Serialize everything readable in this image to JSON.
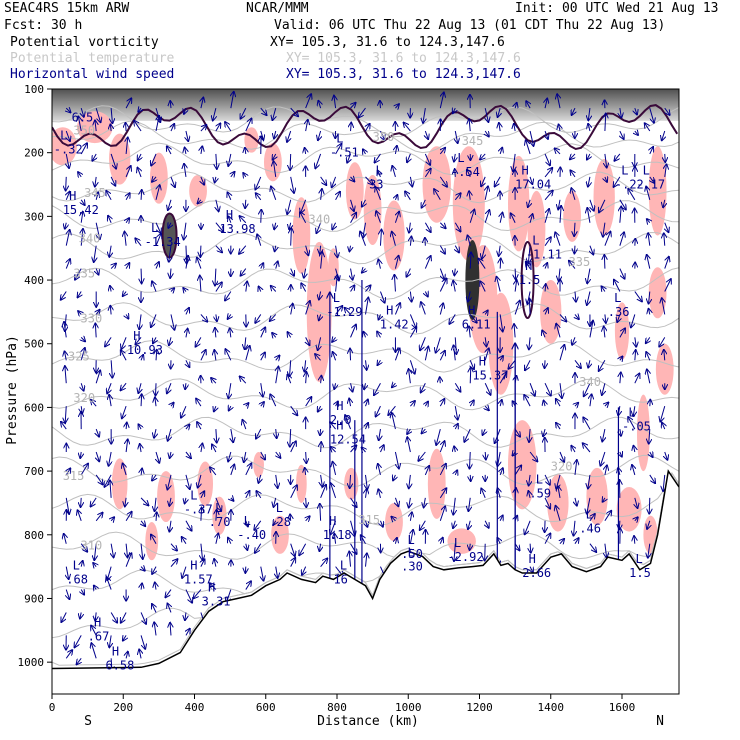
{
  "header": {
    "title_left": "SEAC4RS 15km ARW",
    "title_center": "NCAR/MMM",
    "init": "Init: 00 UTC Wed 21 Aug 13",
    "fcst": "Fcst:   30 h",
    "valid": "Valid: 06 UTC Thu 22 Aug 13 (01 CDT Thu 22 Aug 13)",
    "field1": "Potential vorticity",
    "field1_xy": "XY= 105.3, 31.6 to 124.3,147.6",
    "field2": "Potential temperature",
    "field2_xy": "XY= 105.3, 31.6 to 124.3,147.6",
    "field3": "Horizontal wind speed",
    "field3_xy": "XY= 105.3, 31.6 to 124.3,147.6"
  },
  "colors": {
    "pv_fill": "#ffb6b6",
    "wind_arrow": "#00008b",
    "theta_contour": "#c0c0c0",
    "pv_contour": "#3a0a3a",
    "terrain": "#000000"
  },
  "chart_data": {
    "type": "cross-section",
    "xlabel": "Distance (km)",
    "ylabel": "Pressure (hPa)",
    "x_ticks": [
      "0",
      "200",
      "400",
      "600",
      "800",
      "1000",
      "1200",
      "1400",
      "1600"
    ],
    "y_ticks": [
      "100",
      "200",
      "300",
      "400",
      "500",
      "600",
      "700",
      "800",
      "900",
      "1000"
    ],
    "xlim": [
      0,
      1760
    ],
    "ylim": [
      1050,
      100
    ],
    "left_end_label": "S",
    "right_end_label": "N",
    "theta_labels": [
      {
        "text": "310",
        "x": 80,
        "p": 817
      },
      {
        "text": "315",
        "x": 30,
        "p": 708
      },
      {
        "text": "320",
        "x": 60,
        "p": 585
      },
      {
        "text": "325",
        "x": 45,
        "p": 520
      },
      {
        "text": "330",
        "x": 80,
        "p": 460
      },
      {
        "text": "335",
        "x": 60,
        "p": 390
      },
      {
        "text": "340",
        "x": 75,
        "p": 335
      },
      {
        "text": "340",
        "x": 720,
        "p": 305
      },
      {
        "text": "345",
        "x": 90,
        "p": 263
      },
      {
        "text": "350",
        "x": 60,
        "p": 165
      },
      {
        "text": "335",
        "x": 1450,
        "p": 372
      },
      {
        "text": "320",
        "x": 1400,
        "p": 693
      },
      {
        "text": "315",
        "x": 860,
        "p": 777
      },
      {
        "text": "345",
        "x": 1150,
        "p": 182
      },
      {
        "text": "350",
        "x": 900,
        "p": 175
      },
      {
        "text": "340",
        "x": 1480,
        "p": 560
      }
    ],
    "extrema_labels": [
      {
        "type": "H",
        "value": "15.42",
        "x": 30,
        "p": 290
      },
      {
        "type": "L",
        "value": "-.32",
        "x": 5,
        "p": 195
      },
      {
        "type": ".",
        "value": "6.5",
        "x": 55,
        "p": 145
      },
      {
        "type": "L",
        "value": "-1.34",
        "x": 260,
        "p": 340
      },
      {
        "type": "H",
        "value": "13.98",
        "x": 470,
        "p": 320
      },
      {
        "type": "L",
        "value": "-.51",
        "x": 780,
        "p": 200
      },
      {
        "type": "L",
        "value": "33",
        "x": 890,
        "p": 250
      },
      {
        "type": "L",
        "value": "-.54",
        "x": 1120,
        "p": 230
      },
      {
        "type": "H",
        "value": "17.04",
        "x": 1300,
        "p": 250
      },
      {
        "type": "L",
        "value": "-.22",
        "x": 1580,
        "p": 250
      },
      {
        "type": "L",
        "value": "-.17",
        "x": 1640,
        "p": 250
      },
      {
        "type": "H",
        "value": "10.93",
        "x": 210,
        "p": 510
      },
      {
        "type": "L",
        "value": "-1.29",
        "x": 770,
        "p": 450
      },
      {
        "type": "H",
        "value": "1.42",
        "x": 920,
        "p": 470
      },
      {
        "type": "H",
        "value": "6.11",
        "x": 1150,
        "p": 470
      },
      {
        "type": "H",
        "value": "15.37",
        "x": 1180,
        "p": 550
      },
      {
        "type": "L",
        "value": "-1.11",
        "x": 1330,
        "p": 360
      },
      {
        "type": "H",
        "value": "1.5",
        "x": 1310,
        "p": 400
      },
      {
        "type": "L",
        "value": ".36",
        "x": 1560,
        "p": 450
      },
      {
        "type": "H",
        "value": "2.0",
        "x": 780,
        "p": 620
      },
      {
        "type": "H",
        "value": "12.54",
        "x": 780,
        "p": 650
      },
      {
        "type": "L",
        "value": "-.05",
        "x": 1600,
        "p": 630
      },
      {
        "type": "L",
        "value": "-.37",
        "x": 370,
        "p": 760
      },
      {
        "type": "L",
        "value": ".70",
        "x": 440,
        "p": 780
      },
      {
        "type": "L",
        "value": "-.40",
        "x": 520,
        "p": 800
      },
      {
        "type": "L",
        "value": ".28",
        "x": 610,
        "p": 780
      },
      {
        "type": "H",
        "value": "1.18",
        "x": 760,
        "p": 800
      },
      {
        "type": "L",
        "value": ".50",
        "x": 980,
        "p": 830
      },
      {
        "type": "L",
        "value": "-2.92",
        "x": 1110,
        "p": 835
      },
      {
        "type": "L",
        "value": ".59",
        "x": 1340,
        "p": 735
      },
      {
        "type": "H",
        "value": "2.66",
        "x": 1320,
        "p": 860
      },
      {
        "type": "L",
        "value": ".46",
        "x": 1480,
        "p": 790
      },
      {
        "type": "L",
        "value": "1.5",
        "x": 1620,
        "p": 860
      },
      {
        "type": "L",
        "value": ".30",
        "x": 980,
        "p": 850
      },
      {
        "type": "L",
        "value": ".68",
        "x": 40,
        "p": 870
      },
      {
        "type": "H",
        "value": "1.57",
        "x": 370,
        "p": 870
      },
      {
        "type": "H",
        "value": "3.31",
        "x": 420,
        "p": 905
      },
      {
        "type": "H",
        "value": ".67",
        "x": 100,
        "p": 960
      },
      {
        "type": "H",
        "value": "6.58",
        "x": 150,
        "p": 1005
      },
      {
        "type": "L",
        "value": "16",
        "x": 790,
        "p": 870
      }
    ],
    "terrain_profile": [
      [
        0,
        1010
      ],
      [
        250,
        1008
      ],
      [
        300,
        1002
      ],
      [
        360,
        985
      ],
      [
        400,
        950
      ],
      [
        440,
        920
      ],
      [
        480,
        905
      ],
      [
        520,
        900
      ],
      [
        560,
        895
      ],
      [
        600,
        880
      ],
      [
        640,
        870
      ],
      [
        660,
        860
      ],
      [
        700,
        870
      ],
      [
        740,
        875
      ],
      [
        760,
        865
      ],
      [
        790,
        870
      ],
      [
        820,
        860
      ],
      [
        850,
        870
      ],
      [
        880,
        880
      ],
      [
        900,
        900
      ],
      [
        920,
        870
      ],
      [
        950,
        845
      ],
      [
        980,
        830
      ],
      [
        1000,
        826
      ],
      [
        1040,
        834
      ],
      [
        1070,
        850
      ],
      [
        1100,
        855
      ],
      [
        1140,
        852
      ],
      [
        1180,
        850
      ],
      [
        1210,
        848
      ],
      [
        1240,
        830
      ],
      [
        1260,
        848
      ],
      [
        1280,
        845
      ],
      [
        1300,
        855
      ],
      [
        1320,
        860
      ],
      [
        1360,
        860
      ],
      [
        1400,
        835
      ],
      [
        1430,
        830
      ],
      [
        1460,
        850
      ],
      [
        1500,
        858
      ],
      [
        1540,
        850
      ],
      [
        1560,
        835
      ],
      [
        1600,
        840
      ],
      [
        1620,
        830
      ],
      [
        1650,
        855
      ],
      [
        1680,
        845
      ],
      [
        1700,
        800
      ],
      [
        1730,
        700
      ],
      [
        1760,
        725
      ]
    ]
  }
}
